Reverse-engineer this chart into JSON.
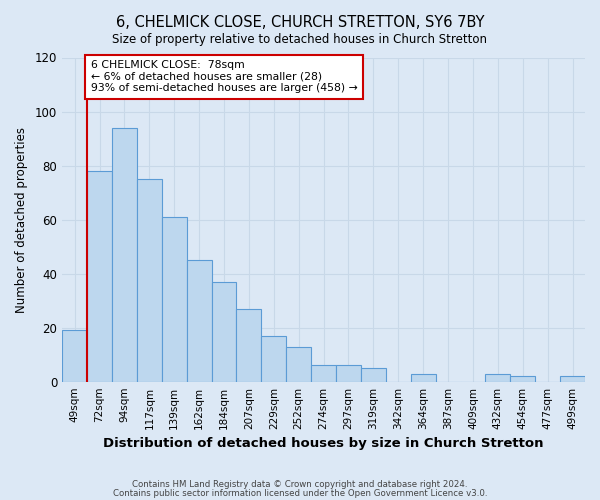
{
  "title": "6, CHELMICK CLOSE, CHURCH STRETTON, SY6 7BY",
  "subtitle": "Size of property relative to detached houses in Church Stretton",
  "xlabel": "Distribution of detached houses by size in Church Stretton",
  "ylabel": "Number of detached properties",
  "bin_labels": [
    "49sqm",
    "72sqm",
    "94sqm",
    "117sqm",
    "139sqm",
    "162sqm",
    "184sqm",
    "207sqm",
    "229sqm",
    "252sqm",
    "274sqm",
    "297sqm",
    "319sqm",
    "342sqm",
    "364sqm",
    "387sqm",
    "409sqm",
    "432sqm",
    "454sqm",
    "477sqm",
    "499sqm"
  ],
  "bar_values": [
    19,
    78,
    94,
    75,
    61,
    45,
    37,
    27,
    17,
    13,
    6,
    6,
    5,
    0,
    3,
    0,
    0,
    3,
    2,
    0,
    2
  ],
  "bar_color": "#bdd7ee",
  "bar_edge_color": "#5b9bd5",
  "ylim": [
    0,
    120
  ],
  "yticks": [
    0,
    20,
    40,
    60,
    80,
    100,
    120
  ],
  "property_line_x": 1,
  "annotation_text": "6 CHELMICK CLOSE:  78sqm\n← 6% of detached houses are smaller (28)\n93% of semi-detached houses are larger (458) →",
  "annotation_box_color": "#ffffff",
  "annotation_box_edge": "#cc0000",
  "property_line_color": "#cc0000",
  "grid_color": "#c8d8e8",
  "background_color": "#dce8f5",
  "footer_line1": "Contains HM Land Registry data © Crown copyright and database right 2024.",
  "footer_line2": "Contains public sector information licensed under the Open Government Licence v3.0."
}
